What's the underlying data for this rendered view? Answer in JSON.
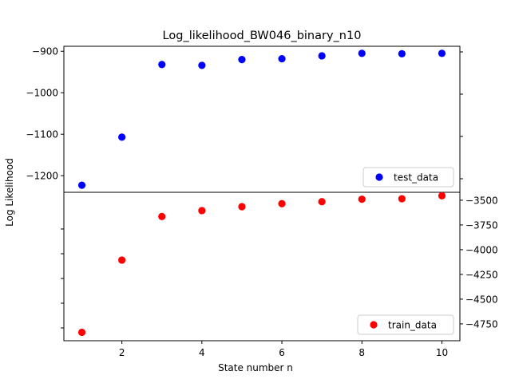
{
  "chart_data": {
    "type": "scatter",
    "title": "Log_likelihood_BW046_binary_n10",
    "xlabel": "State number n",
    "ylabel": "Log Likelihood",
    "xlim": [
      0.55,
      10.45
    ],
    "x_ticks": [
      2,
      4,
      6,
      8,
      10
    ],
    "x_tick_labels": [
      "2",
      "4",
      "6",
      "8",
      "10"
    ],
    "grid": false,
    "panels": [
      {
        "position": "top",
        "y_axis_side": "left",
        "ylim": [
          -1240,
          -888
        ],
        "y_ticks": [
          -900,
          -1000,
          -1100,
          -1200
        ],
        "y_tick_labels": [
          "−900",
          "−1000",
          "−1100",
          "−1200"
        ],
        "legend_position": "lower-right",
        "series": [
          {
            "name": "test_data",
            "color": "#0000ff",
            "x": [
              1,
              2,
              3,
              4,
              5,
              6,
              7,
              8,
              9,
              10
            ],
            "y": [
              -1223,
              -1107,
              -932,
              -934,
              -920,
              -918,
              -911,
              -905,
              -906,
              -905
            ]
          }
        ]
      },
      {
        "position": "bottom",
        "y_axis_side": "right",
        "ylim": [
          -4920,
          -3420
        ],
        "y_ticks": [
          -3500,
          -3750,
          -4000,
          -4250,
          -4500,
          -4750
        ],
        "y_tick_labels": [
          "−3500",
          "−3750",
          "−4000",
          "−4250",
          "−4500",
          "−4750"
        ],
        "legend_position": "lower-right",
        "series": [
          {
            "name": "train_data",
            "color": "#ff0000",
            "x": [
              1,
              2,
              3,
              4,
              5,
              6,
              7,
              8,
              9,
              10
            ],
            "y": [
              -4835,
              -4105,
              -3665,
              -3605,
              -3565,
              -3535,
              -3515,
              -3490,
              -3485,
              -3455
            ]
          }
        ]
      }
    ]
  }
}
